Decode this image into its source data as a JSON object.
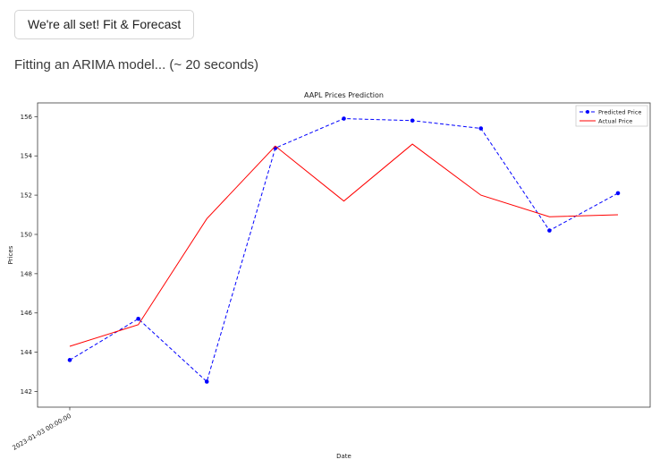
{
  "header": {
    "button_label": "We're all set! Fit & Forecast",
    "status_text": "Fitting an ARIMA model... (~ 20 seconds)"
  },
  "chart_data": {
    "type": "line",
    "title": "AAPL Prices Prediction",
    "xlabel": "Date",
    "ylabel": "Prices",
    "x_tick_labels": [
      "2023-01-03 00:00:00"
    ],
    "yticks": [
      142,
      144,
      146,
      148,
      150,
      152,
      154,
      156
    ],
    "ylim": [
      141.2,
      156.7
    ],
    "grid": false,
    "legend_position": "upper right",
    "x": [
      0,
      1,
      2,
      3,
      4,
      5,
      6,
      7,
      8
    ],
    "series": [
      {
        "name": "Predicted Price",
        "color": "#0000ff",
        "style": "dashed",
        "marker": "circle",
        "values": [
          143.6,
          145.7,
          142.5,
          154.4,
          155.9,
          155.8,
          155.4,
          150.2,
          152.1
        ]
      },
      {
        "name": "Actual Price",
        "color": "#ff0000",
        "style": "solid",
        "marker": "none",
        "values": [
          144.3,
          145.4,
          150.8,
          154.5,
          151.7,
          154.6,
          152.0,
          150.9,
          151.0
        ]
      }
    ]
  }
}
